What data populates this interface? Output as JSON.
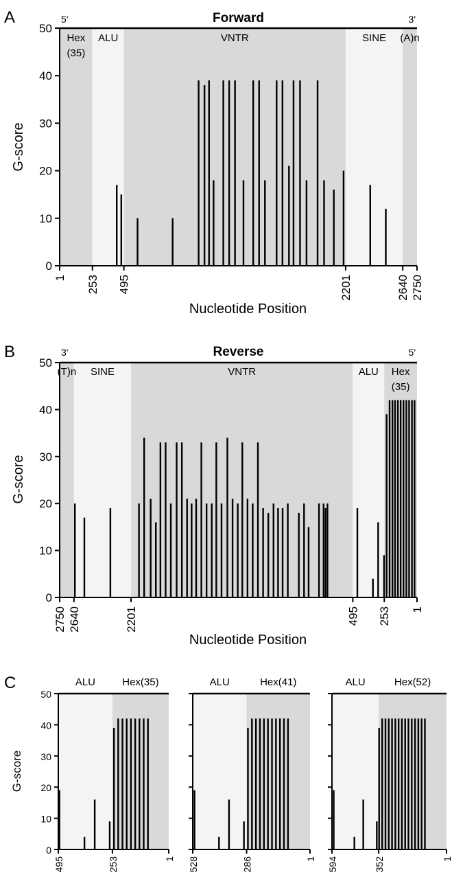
{
  "colors": {
    "shade_dark": "#d9d9d9",
    "shade_light": "#f4f4f4",
    "bar": "#000000"
  },
  "chart_data": [
    {
      "panel": "A",
      "type": "bar",
      "title": "Forward",
      "xlabel": "Nucleotide Position",
      "ylabel": "G-score",
      "ylim": [
        0,
        50
      ],
      "yticks": [
        "0",
        "10",
        "20",
        "30",
        "40",
        "50"
      ],
      "xdomain": [
        1,
        2750
      ],
      "direction": "ascending",
      "x_ticks": [
        "1",
        "253",
        "495",
        "2201",
        "2640",
        "2750"
      ],
      "end_labels": {
        "left": "5'",
        "right": "3'"
      },
      "regions": [
        {
          "label": "Hex",
          "sublabel": "(35)",
          "start": 1,
          "end": 253,
          "shade": "dark"
        },
        {
          "label": "ALU",
          "start": 253,
          "end": 495,
          "shade": "light"
        },
        {
          "label": "VNTR",
          "start": 495,
          "end": 2201,
          "shade": "dark"
        },
        {
          "label": "SINE",
          "start": 2201,
          "end": 2640,
          "shade": "light"
        },
        {
          "label": "(A)n",
          "start": 2640,
          "end": 2750,
          "shade": "dark"
        }
      ],
      "bars": [
        {
          "x": 440,
          "y": 17
        },
        {
          "x": 475,
          "y": 15
        },
        {
          "x": 600,
          "y": 10
        },
        {
          "x": 870,
          "y": 10
        },
        {
          "x": 1070,
          "y": 39
        },
        {
          "x": 1115,
          "y": 38
        },
        {
          "x": 1150,
          "y": 39
        },
        {
          "x": 1185,
          "y": 18
        },
        {
          "x": 1260,
          "y": 39
        },
        {
          "x": 1305,
          "y": 39
        },
        {
          "x": 1350,
          "y": 39
        },
        {
          "x": 1415,
          "y": 18
        },
        {
          "x": 1490,
          "y": 39
        },
        {
          "x": 1535,
          "y": 39
        },
        {
          "x": 1580,
          "y": 18
        },
        {
          "x": 1670,
          "y": 39
        },
        {
          "x": 1715,
          "y": 39
        },
        {
          "x": 1765,
          "y": 21
        },
        {
          "x": 1800,
          "y": 39
        },
        {
          "x": 1850,
          "y": 39
        },
        {
          "x": 1900,
          "y": 18
        },
        {
          "x": 1985,
          "y": 39
        },
        {
          "x": 2035,
          "y": 18
        },
        {
          "x": 2110,
          "y": 16
        },
        {
          "x": 2185,
          "y": 20
        },
        {
          "x": 2390,
          "y": 17
        },
        {
          "x": 2510,
          "y": 12
        }
      ]
    },
    {
      "panel": "B",
      "type": "bar",
      "title": "Reverse",
      "xlabel": "Nucleotide Position",
      "ylabel": "G-score",
      "ylim": [
        0,
        50
      ],
      "yticks": [
        "0",
        "10",
        "20",
        "30",
        "40",
        "50"
      ],
      "xdomain": [
        2750,
        1
      ],
      "direction": "descending",
      "x_ticks": [
        "2750",
        "2640",
        "2201",
        "495",
        "253",
        "1"
      ],
      "end_labels": {
        "left": "3'",
        "right": "5'"
      },
      "regions": [
        {
          "label": "(T)n",
          "start": 2750,
          "end": 2640,
          "shade": "dark"
        },
        {
          "label": "SINE",
          "start": 2640,
          "end": 2201,
          "shade": "light"
        },
        {
          "label": "VNTR",
          "start": 2201,
          "end": 495,
          "shade": "dark"
        },
        {
          "label": "ALU",
          "start": 495,
          "end": 253,
          "shade": "light"
        },
        {
          "label": "Hex",
          "sublabel": "(35)",
          "start": 253,
          "end": 1,
          "shade": "dark"
        }
      ],
      "bars": [
        {
          "x": 2633,
          "y": 20
        },
        {
          "x": 2560,
          "y": 17
        },
        {
          "x": 2360,
          "y": 19
        },
        {
          "x": 2140,
          "y": 20
        },
        {
          "x": 2100,
          "y": 34
        },
        {
          "x": 2050,
          "y": 21
        },
        {
          "x": 2010,
          "y": 16
        },
        {
          "x": 1975,
          "y": 33
        },
        {
          "x": 1935,
          "y": 33
        },
        {
          "x": 1895,
          "y": 20
        },
        {
          "x": 1850,
          "y": 33
        },
        {
          "x": 1810,
          "y": 33
        },
        {
          "x": 1770,
          "y": 21
        },
        {
          "x": 1735,
          "y": 20
        },
        {
          "x": 1700,
          "y": 21
        },
        {
          "x": 1660,
          "y": 33
        },
        {
          "x": 1620,
          "y": 20
        },
        {
          "x": 1580,
          "y": 20
        },
        {
          "x": 1545,
          "y": 33
        },
        {
          "x": 1505,
          "y": 20
        },
        {
          "x": 1460,
          "y": 34
        },
        {
          "x": 1420,
          "y": 21
        },
        {
          "x": 1380,
          "y": 20
        },
        {
          "x": 1345,
          "y": 33
        },
        {
          "x": 1305,
          "y": 21
        },
        {
          "x": 1265,
          "y": 20
        },
        {
          "x": 1225,
          "y": 33
        },
        {
          "x": 1185,
          "y": 19
        },
        {
          "x": 1145,
          "y": 18
        },
        {
          "x": 1105,
          "y": 20
        },
        {
          "x": 1070,
          "y": 19
        },
        {
          "x": 1035,
          "y": 19
        },
        {
          "x": 995,
          "y": 20
        },
        {
          "x": 910,
          "y": 18
        },
        {
          "x": 870,
          "y": 20
        },
        {
          "x": 835,
          "y": 15
        },
        {
          "x": 755,
          "y": 20
        },
        {
          "x": 720,
          "y": 20
        },
        {
          "x": 705,
          "y": 19
        },
        {
          "x": 690,
          "y": 20
        },
        {
          "x": 460,
          "y": 19
        },
        {
          "x": 340,
          "y": 4
        },
        {
          "x": 300,
          "y": 16
        },
        {
          "x": 255,
          "y": 9
        },
        {
          "x": 235,
          "y": 39
        },
        {
          "x": 212,
          "y": 42
        },
        {
          "x": 190,
          "y": 42
        },
        {
          "x": 170,
          "y": 42
        },
        {
          "x": 148,
          "y": 42
        },
        {
          "x": 127,
          "y": 42
        },
        {
          "x": 105,
          "y": 42
        },
        {
          "x": 83,
          "y": 42
        },
        {
          "x": 62,
          "y": 42
        },
        {
          "x": 40,
          "y": 42
        },
        {
          "x": 20,
          "y": 42
        }
      ]
    },
    {
      "panel": "C",
      "type": "bar",
      "title": "",
      "xlabel": "",
      "ylabel": "G-score",
      "ylim": [
        0,
        50
      ],
      "yticks": [
        "0",
        "10",
        "20",
        "30",
        "40",
        "50"
      ],
      "xdomain": [
        495,
        1
      ],
      "direction": "descending",
      "x_ticks": [
        "495",
        "253",
        "1"
      ],
      "regions": [
        {
          "label": "ALU",
          "start": 495,
          "end": 253,
          "shade": "light"
        },
        {
          "label": "Hex(35)",
          "start": 253,
          "end": 1,
          "shade": "dark"
        }
      ],
      "bars": [
        {
          "x": 490,
          "y": 19
        },
        {
          "x": 378,
          "y": 4
        },
        {
          "x": 332,
          "y": 16
        },
        {
          "x": 265,
          "y": 9
        },
        {
          "x": 246,
          "y": 39
        },
        {
          "x": 227,
          "y": 42
        },
        {
          "x": 208,
          "y": 42
        },
        {
          "x": 189,
          "y": 42
        },
        {
          "x": 170,
          "y": 42
        },
        {
          "x": 151,
          "y": 42
        },
        {
          "x": 132,
          "y": 42
        },
        {
          "x": 113,
          "y": 42
        },
        {
          "x": 94,
          "y": 42
        }
      ]
    },
    {
      "panel": "C",
      "type": "bar",
      "title": "",
      "xlabel": "",
      "ylabel": "",
      "ylim": [
        0,
        50
      ],
      "xdomain": [
        528,
        1
      ],
      "direction": "descending",
      "x_ticks": [
        "528",
        "286",
        "1"
      ],
      "regions": [
        {
          "label": "ALU",
          "start": 528,
          "end": 286,
          "shade": "light"
        },
        {
          "label": "Hex(41)",
          "start": 286,
          "end": 1,
          "shade": "dark"
        }
      ],
      "bars": [
        {
          "x": 520,
          "y": 19
        },
        {
          "x": 410,
          "y": 4
        },
        {
          "x": 365,
          "y": 16
        },
        {
          "x": 298,
          "y": 9
        },
        {
          "x": 280,
          "y": 39
        },
        {
          "x": 262,
          "y": 42
        },
        {
          "x": 244,
          "y": 42
        },
        {
          "x": 226,
          "y": 42
        },
        {
          "x": 208,
          "y": 42
        },
        {
          "x": 190,
          "y": 42
        },
        {
          "x": 172,
          "y": 42
        },
        {
          "x": 154,
          "y": 42
        },
        {
          "x": 136,
          "y": 42
        },
        {
          "x": 118,
          "y": 42
        },
        {
          "x": 100,
          "y": 42
        }
      ]
    },
    {
      "panel": "C",
      "type": "bar",
      "title": "",
      "xlabel": "",
      "ylabel": "",
      "ylim": [
        0,
        50
      ],
      "xdomain": [
        594,
        1
      ],
      "direction": "descending",
      "x_ticks": [
        "594",
        "352",
        "1"
      ],
      "regions": [
        {
          "label": "ALU",
          "start": 594,
          "end": 352,
          "shade": "light"
        },
        {
          "label": "Hex(52)",
          "start": 352,
          "end": 1,
          "shade": "dark"
        }
      ],
      "bars": [
        {
          "x": 585,
          "y": 19
        },
        {
          "x": 478,
          "y": 4
        },
        {
          "x": 432,
          "y": 16
        },
        {
          "x": 362,
          "y": 9
        },
        {
          "x": 350,
          "y": 39
        },
        {
          "x": 334,
          "y": 42
        },
        {
          "x": 317,
          "y": 42
        },
        {
          "x": 300,
          "y": 42
        },
        {
          "x": 283,
          "y": 42
        },
        {
          "x": 266,
          "y": 42
        },
        {
          "x": 249,
          "y": 42
        },
        {
          "x": 232,
          "y": 42
        },
        {
          "x": 215,
          "y": 42
        },
        {
          "x": 198,
          "y": 42
        },
        {
          "x": 181,
          "y": 42
        },
        {
          "x": 164,
          "y": 42
        },
        {
          "x": 147,
          "y": 42
        },
        {
          "x": 130,
          "y": 42
        },
        {
          "x": 113,
          "y": 42
        }
      ]
    }
  ]
}
